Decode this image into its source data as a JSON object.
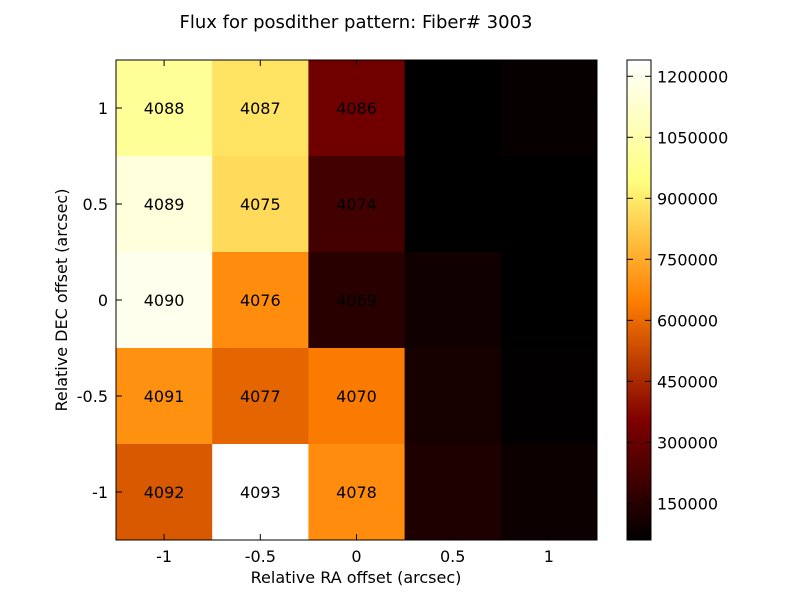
{
  "chart_data": {
    "type": "heatmap",
    "title": "Flux for posdither pattern: Fiber# 3003",
    "xlabel": "Relative RA offset (arcsec)",
    "ylabel": "Relative DEC offset (arcsec)",
    "x": [
      -1,
      -0.5,
      0,
      0.5,
      1
    ],
    "y": [
      1,
      0.5,
      0,
      -0.5,
      -1
    ],
    "x_tick_labels": [
      "-1",
      "-0.5",
      "0",
      "0.5",
      "1"
    ],
    "y_tick_labels": [
      "1",
      "0.5",
      "0",
      "-0.5",
      "-1"
    ],
    "cell_labels": [
      [
        "4088",
        "4087",
        "4086",
        "",
        ""
      ],
      [
        "4089",
        "4075",
        "4074",
        "",
        ""
      ],
      [
        "4090",
        "4076",
        "4069",
        "",
        ""
      ],
      [
        "4091",
        "4077",
        "4070",
        "",
        ""
      ],
      [
        "4092",
        "4093",
        "4078",
        "",
        ""
      ]
    ],
    "values": [
      [
        1000000,
        880000,
        320000,
        55000,
        75000
      ],
      [
        1160000,
        860000,
        215000,
        60000,
        60000
      ],
      [
        1200000,
        680000,
        155000,
        100000,
        60000
      ],
      [
        690000,
        590000,
        640000,
        110000,
        65000
      ],
      [
        560000,
        1240000,
        680000,
        130000,
        90000
      ]
    ],
    "colormap": "afmhot",
    "colorbar": {
      "min": 60000,
      "max": 1240000,
      "ticks": [
        150000,
        300000,
        450000,
        600000,
        750000,
        900000,
        1050000,
        1200000
      ],
      "tick_labels": [
        "150000",
        "300000",
        "450000",
        "600000",
        "750000",
        "900000",
        "1050000",
        "1200000"
      ]
    },
    "grid": false,
    "legend": "none"
  }
}
